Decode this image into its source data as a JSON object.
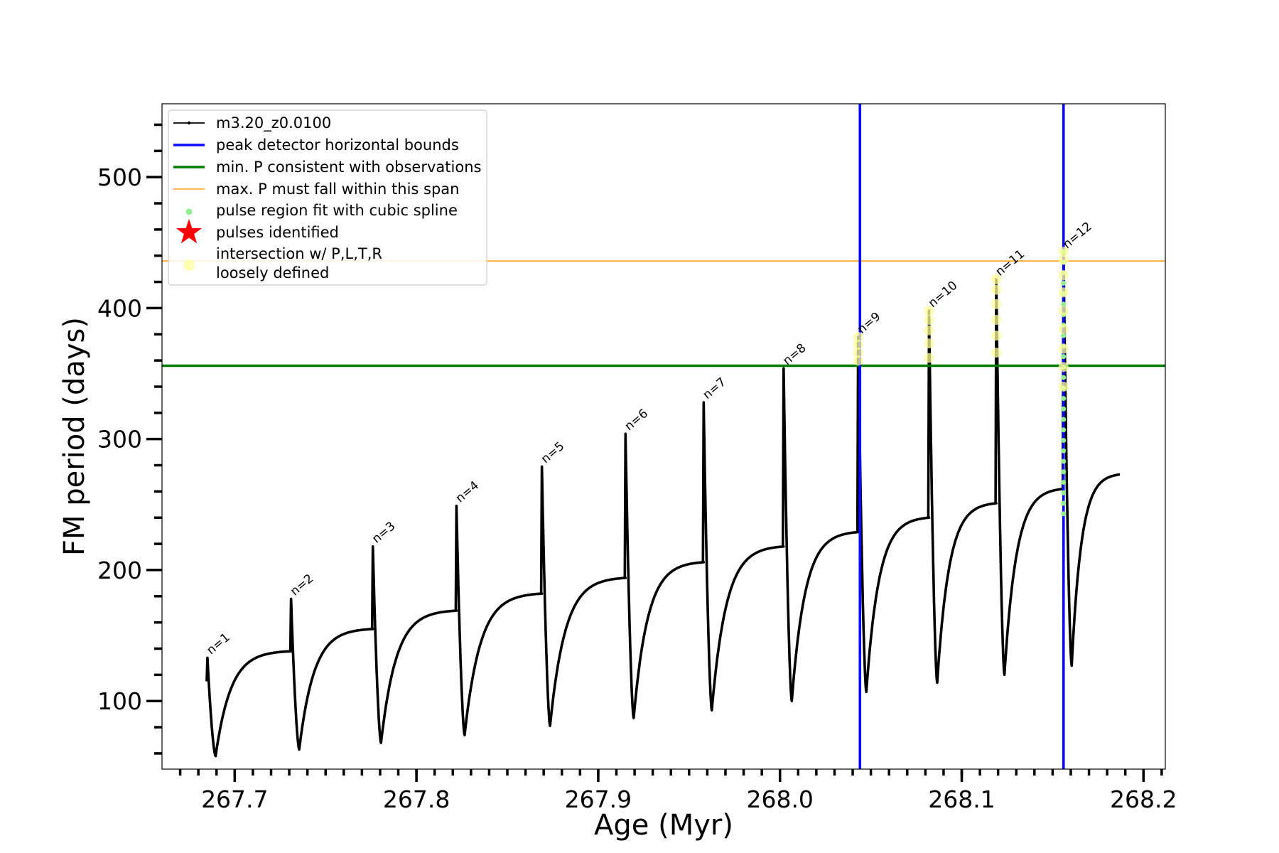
{
  "chart_data": {
    "type": "line",
    "title": "",
    "xlabel": "Age (Myr)",
    "ylabel": "FM period (days)",
    "xlim": [
      267.66,
      268.212
    ],
    "ylim": [
      48,
      556
    ],
    "x_ticks": [
      "267.7",
      "267.8",
      "267.9",
      "268.0",
      "268.1",
      "268.2"
    ],
    "x_tick_values": [
      267.7,
      267.8,
      267.9,
      268.0,
      268.1,
      268.2
    ],
    "x_minor_step": 0.01,
    "y_ticks": [
      "100",
      "200",
      "300",
      "400",
      "500"
    ],
    "y_tick_values": [
      100,
      200,
      300,
      400,
      500
    ],
    "y_minor_step": 20,
    "hlines": [
      {
        "name": "min. P consistent with observations",
        "y": 356,
        "color": "#007a00"
      },
      {
        "name": "max. P must fall within this span",
        "y": 436,
        "color": "#ffa31a"
      }
    ],
    "vlines": [
      {
        "name": "peak detector horizontal bounds",
        "x": 268.044,
        "color": "#0a0aff"
      },
      {
        "name": "peak detector horizontal bounds",
        "x": 268.156,
        "color": "#0a0aff"
      }
    ],
    "series_name": "m3.20_z0.0100",
    "series_color": "#000000",
    "pulses": [
      {
        "label": "n=1",
        "x": 267.685,
        "peak": 133,
        "trough": 58,
        "plateau": 138,
        "x_end": 267.731
      },
      {
        "label": "n=2",
        "x": 267.731,
        "peak": 178,
        "trough": 63,
        "plateau": 155,
        "x_end": 267.776
      },
      {
        "label": "n=3",
        "x": 267.776,
        "peak": 218,
        "trough": 68,
        "plateau": 169,
        "x_end": 267.822
      },
      {
        "label": "n=4",
        "x": 267.822,
        "peak": 249,
        "trough": 74,
        "plateau": 182,
        "x_end": 267.869
      },
      {
        "label": "n=5",
        "x": 267.869,
        "peak": 279,
        "trough": 81,
        "plateau": 194,
        "x_end": 267.915
      },
      {
        "label": "n=6",
        "x": 267.915,
        "peak": 304,
        "trough": 87,
        "plateau": 206,
        "x_end": 267.958
      },
      {
        "label": "n=7",
        "x": 267.958,
        "peak": 328,
        "trough": 93,
        "plateau": 218,
        "x_end": 268.002
      },
      {
        "label": "n=8",
        "x": 268.002,
        "peak": 354,
        "trough": 100,
        "plateau": 229,
        "x_end": 268.043
      },
      {
        "label": "n=9",
        "x": 268.043,
        "peak": 378,
        "trough": 107,
        "plateau": 240,
        "x_end": 268.082
      },
      {
        "label": "n=10",
        "x": 268.082,
        "peak": 398,
        "trough": 114,
        "plateau": 251,
        "x_end": 268.119
      },
      {
        "label": "n=11",
        "x": 268.119,
        "peak": 422,
        "trough": 120,
        "plateau": 262,
        "x_end": 268.156
      },
      {
        "label": "n=12",
        "x": 268.156,
        "peak": 443,
        "trough": 127,
        "plateau": 273,
        "x_end": 268.187
      }
    ],
    "loosely_defined_points": [
      {
        "x": 268.043,
        "values": [
          378,
          372,
          366,
          360
        ]
      },
      {
        "x": 268.082,
        "values": [
          398,
          391,
          383,
          373,
          362
        ]
      },
      {
        "x": 268.119,
        "values": [
          422,
          414,
          403,
          391,
          379,
          366
        ]
      },
      {
        "x": 268.156,
        "values": [
          443,
          437,
          425,
          412,
          398,
          384,
          369,
          355,
          340
        ]
      }
    ],
    "spline_region": {
      "x": 268.156,
      "from": 243,
      "to": 443,
      "color": "#90ee90"
    },
    "legend": {
      "placement": "upper-left",
      "entries": [
        {
          "label": "m3.20_z0.0100",
          "marker": "line-dot",
          "color": "#000000"
        },
        {
          "label": "peak detector horizontal bounds",
          "marker": "line-thick",
          "color": "#0a0aff"
        },
        {
          "label": "min. P consistent with observations",
          "marker": "line-thick",
          "color": "#007a00"
        },
        {
          "label": "max. P must fall within this span",
          "marker": "line-thin",
          "color": "#ffa31a"
        },
        {
          "label": "pulse region fit with cubic spline",
          "marker": "dot",
          "color": "#90ee90"
        },
        {
          "label": "pulses identified",
          "marker": "star",
          "color": "#ff0000"
        },
        {
          "label": "intersection w/ P,L,T,R",
          "label2": "loosely defined",
          "marker": "circle",
          "color": "#ffff99"
        }
      ]
    }
  }
}
